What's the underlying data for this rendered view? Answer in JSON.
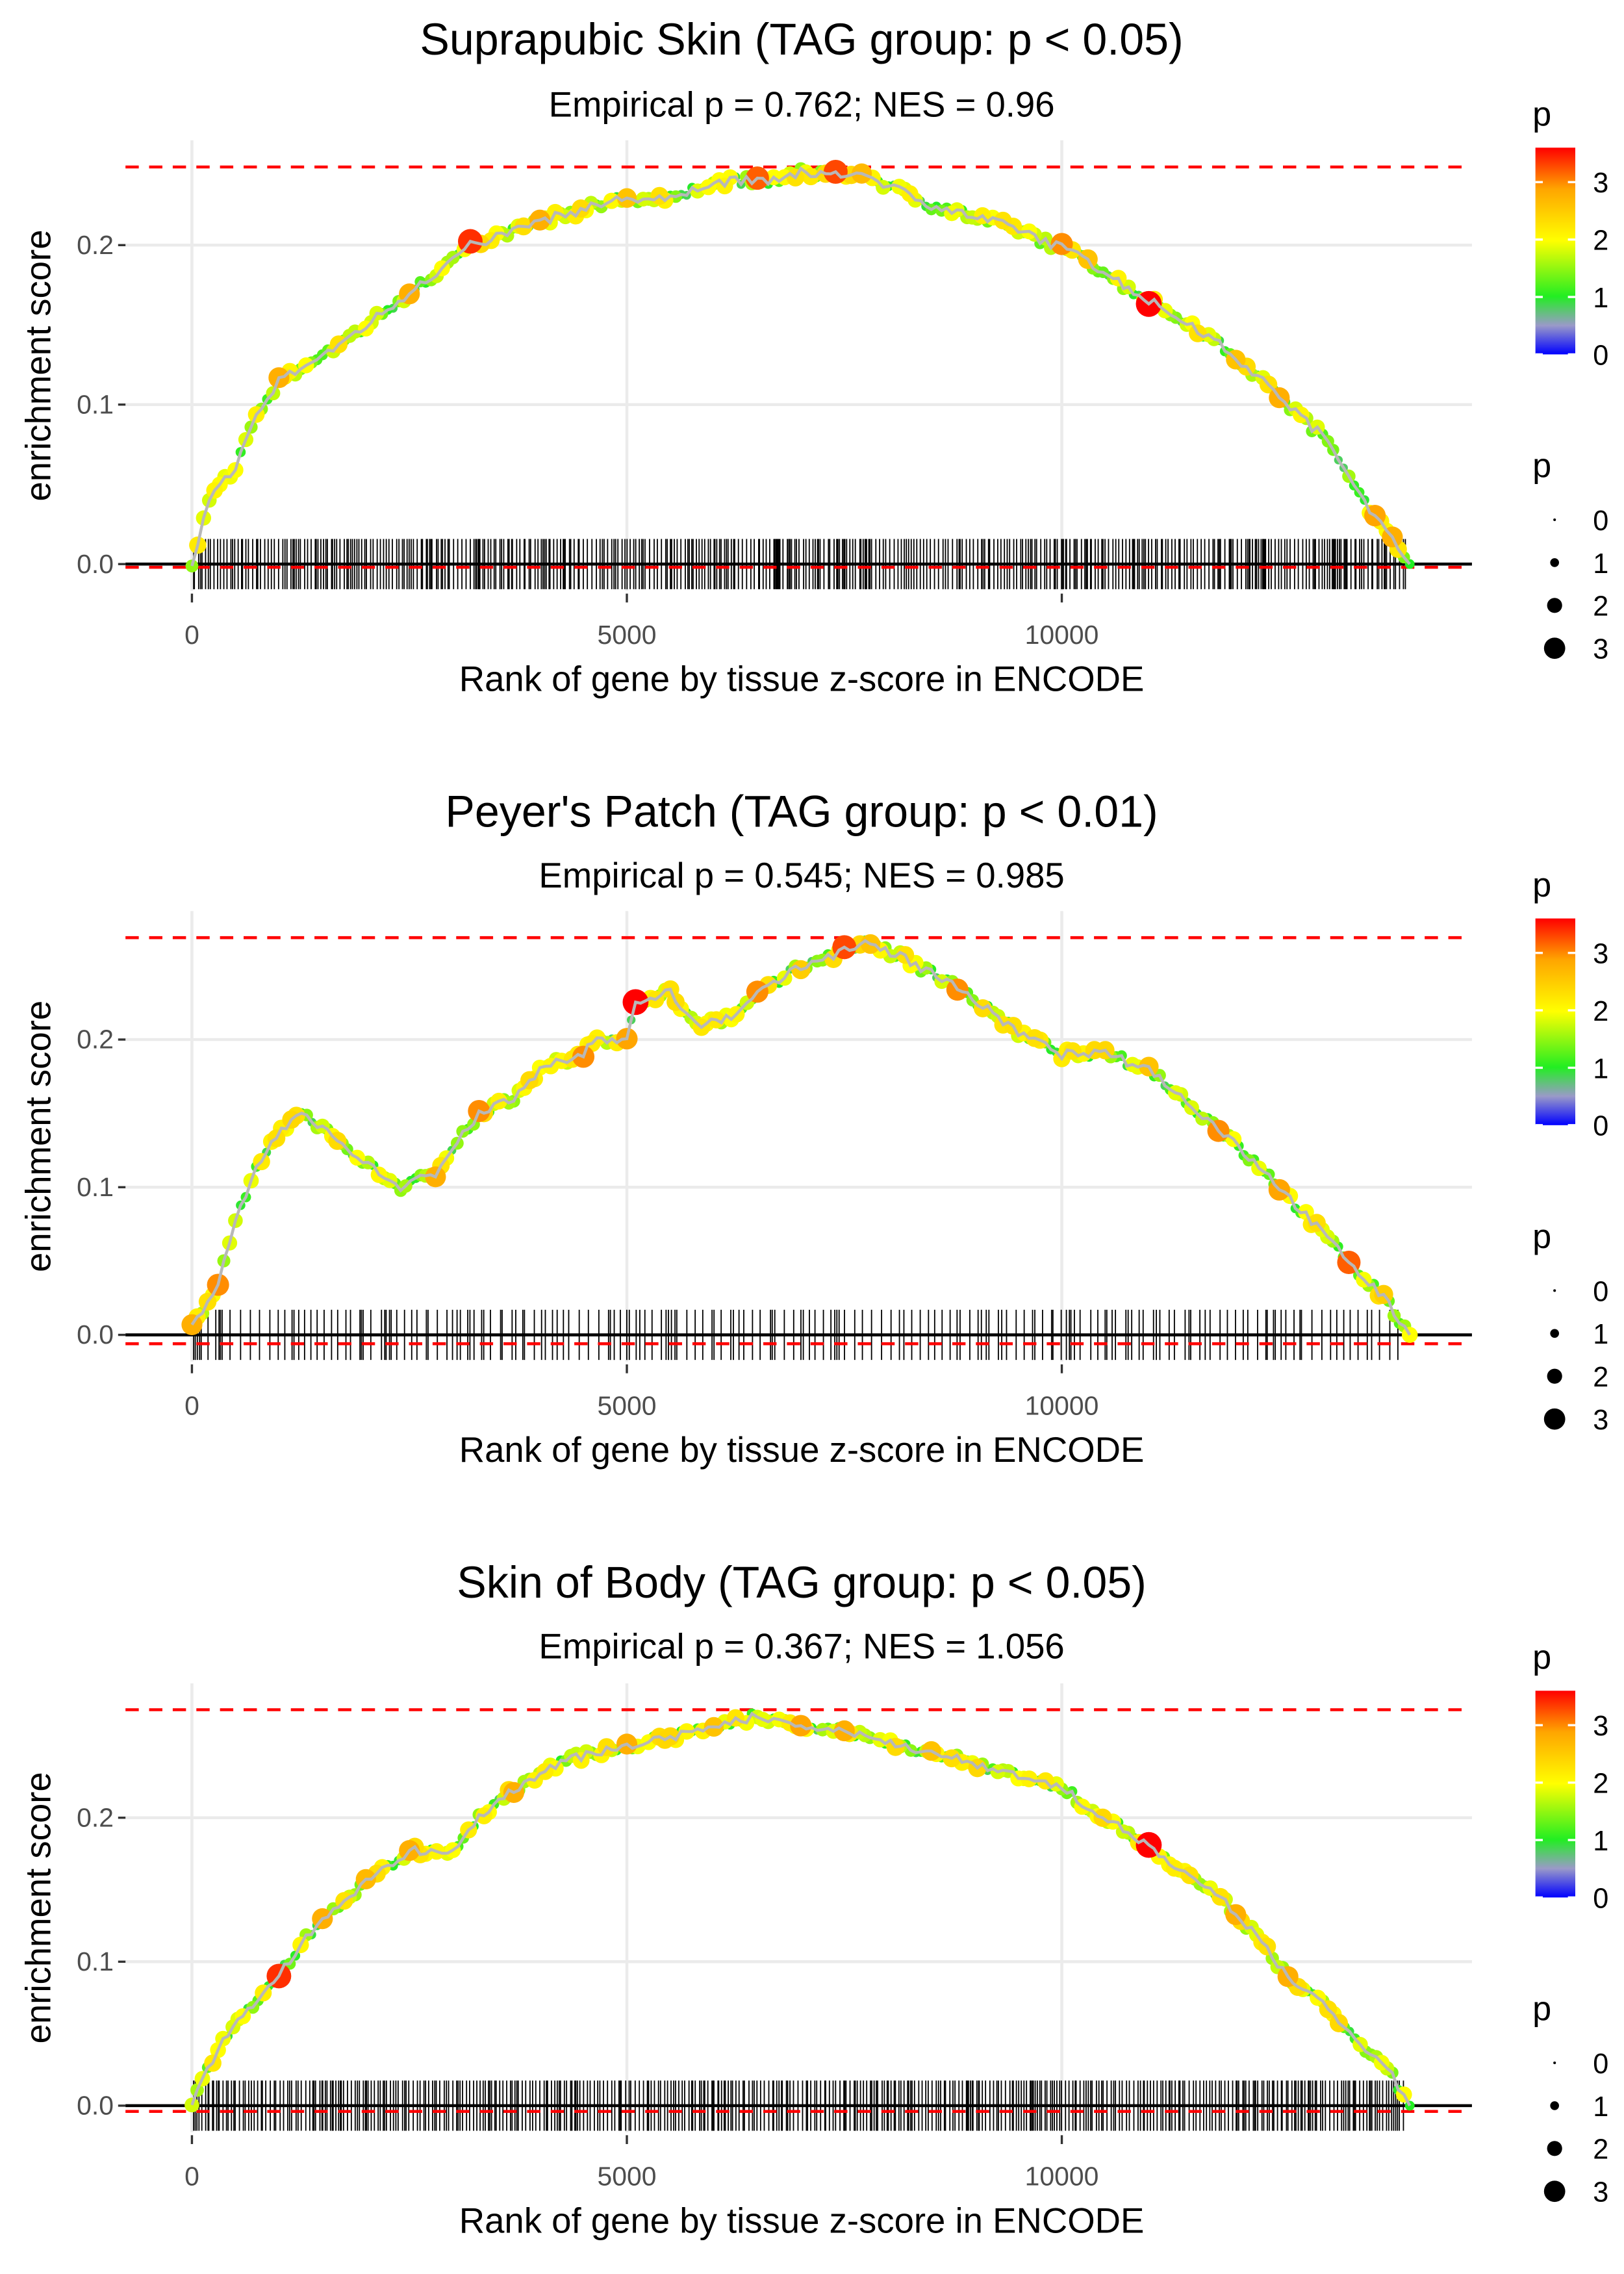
{
  "chart_data": [
    {
      "type": "line",
      "title": "Suprapubic Skin (TAG group: p < 0.05)",
      "subtitle": "Empirical p = 0.762; NES = 0.96",
      "xlabel": "Rank of gene by tissue z-score in ENCODE",
      "ylabel": "enrichment score",
      "xlim": [
        -750,
        14700
      ],
      "ylim": [
        -0.02,
        0.27
      ],
      "xticks": [
        "0",
        "5000",
        "10000"
      ],
      "xtick_values": [
        0,
        5000,
        10000
      ],
      "yticks": [
        "0.0",
        "0.1",
        "0.2"
      ],
      "ytick_values": [
        0,
        0.1,
        0.2
      ],
      "hlines": [
        0.249,
        -0.002
      ],
      "points": [
        [
          0,
          0,
          1.5
        ],
        [
          200,
          0.04,
          1.8
        ],
        [
          500,
          0.06,
          2
        ],
        [
          800,
          0.1,
          1.5
        ],
        [
          1000,
          0.115,
          2.8
        ],
        [
          1500,
          0.13,
          1.2
        ],
        [
          2000,
          0.15,
          2
        ],
        [
          2500,
          0.17,
          2.8
        ],
        [
          3000,
          0.19,
          1.6
        ],
        [
          3200,
          0.2,
          3.4
        ],
        [
          3500,
          0.205,
          2
        ],
        [
          4000,
          0.215,
          2.8
        ],
        [
          5000,
          0.23,
          2.6
        ],
        [
          5500,
          0.228,
          1.1
        ],
        [
          6000,
          0.24,
          1.7
        ],
        [
          6500,
          0.24,
          3.2
        ],
        [
          7000,
          0.245,
          1.5
        ],
        [
          7400,
          0.245,
          3.3
        ],
        [
          7700,
          0.245,
          2.7
        ],
        [
          8500,
          0.225,
          1.3
        ],
        [
          9500,
          0.21,
          1.8
        ],
        [
          10000,
          0.198,
          3
        ],
        [
          10300,
          0.19,
          2.6
        ],
        [
          11000,
          0.165,
          3.6
        ],
        [
          11500,
          0.15,
          2
        ],
        [
          12000,
          0.13,
          2.6
        ],
        [
          12500,
          0.105,
          2.8
        ],
        [
          13000,
          0.08,
          1.2
        ],
        [
          13600,
          0.03,
          2.9
        ],
        [
          13800,
          0.015,
          2.8
        ],
        [
          14000,
          0,
          1
        ]
      ]
    },
    {
      "type": "line",
      "title": "Peyer's Patch (TAG group: p < 0.01)",
      "subtitle": "Empirical p = 0.545; NES = 0.985",
      "xlabel": "Rank of gene by tissue z-score in ENCODE",
      "ylabel": "enrichment score",
      "xlim": [
        -750,
        14700
      ],
      "ylim": [
        -0.02,
        0.29
      ],
      "xticks": [
        "0",
        "5000",
        "10000"
      ],
      "xtick_values": [
        0,
        5000,
        10000
      ],
      "yticks": [
        "0.0",
        "0.1",
        "0.2"
      ],
      "ytick_values": [
        0,
        0.1,
        0.2
      ],
      "hlines": [
        0.269,
        -0.006
      ],
      "points": [
        [
          0,
          0.005,
          2.8
        ],
        [
          300,
          0.035,
          3
        ],
        [
          500,
          0.08,
          1.8
        ],
        [
          800,
          0.12,
          2.2
        ],
        [
          1200,
          0.15,
          2.3
        ],
        [
          1500,
          0.14,
          1.8
        ],
        [
          1900,
          0.12,
          2
        ],
        [
          2400,
          0.1,
          1.5
        ],
        [
          2800,
          0.11,
          2.8
        ],
        [
          3300,
          0.15,
          3
        ],
        [
          3700,
          0.16,
          1.5
        ],
        [
          4000,
          0.18,
          2
        ],
        [
          4500,
          0.19,
          3
        ],
        [
          4600,
          0.2,
          2.2
        ],
        [
          5000,
          0.2,
          2.9
        ],
        [
          5100,
          0.225,
          3.6
        ],
        [
          5500,
          0.232,
          2.3
        ],
        [
          5800,
          0.21,
          1.8
        ],
        [
          6200,
          0.215,
          2
        ],
        [
          6500,
          0.23,
          3
        ],
        [
          7000,
          0.25,
          2.5
        ],
        [
          7500,
          0.26,
          3.3
        ],
        [
          7800,
          0.265,
          2.6
        ],
        [
          8200,
          0.255,
          2.3
        ],
        [
          8800,
          0.235,
          3
        ],
        [
          9500,
          0.205,
          1.8
        ],
        [
          10000,
          0.19,
          2.2
        ],
        [
          10500,
          0.19,
          2.4
        ],
        [
          11000,
          0.18,
          2.6
        ],
        [
          11800,
          0.14,
          3
        ],
        [
          12500,
          0.1,
          2.9
        ],
        [
          13300,
          0.05,
          3.2
        ],
        [
          13700,
          0.025,
          2.5
        ],
        [
          14000,
          0,
          2
        ]
      ]
    },
    {
      "type": "line",
      "title": "Skin of Body (TAG group: p < 0.05)",
      "subtitle": "Empirical p = 0.367; NES = 1.056",
      "xlabel": "Rank of gene by tissue z-score in ENCODE",
      "ylabel": "enrichment score",
      "xlim": [
        -750,
        14700
      ],
      "ylim": [
        -0.02,
        0.29
      ],
      "xticks": [
        "0",
        "5000",
        "10000"
      ],
      "xtick_values": [
        0,
        5000,
        10000
      ],
      "yticks": [
        "0.0",
        "0.1",
        "0.2"
      ],
      "ytick_values": [
        0,
        0.1,
        0.2
      ],
      "hlines": [
        0.275,
        -0.004
      ],
      "points": [
        [
          0,
          0,
          1.8
        ],
        [
          300,
          0.04,
          2
        ],
        [
          700,
          0.07,
          1.5
        ],
        [
          1000,
          0.092,
          3.4
        ],
        [
          1500,
          0.13,
          2.8
        ],
        [
          2000,
          0.155,
          2.7
        ],
        [
          2500,
          0.177,
          2.8
        ],
        [
          3000,
          0.178,
          2
        ],
        [
          3300,
          0.2,
          1.5
        ],
        [
          3700,
          0.22,
          2.8
        ],
        [
          4300,
          0.24,
          1.4
        ],
        [
          5000,
          0.25,
          2.8
        ],
        [
          5500,
          0.255,
          2.4
        ],
        [
          6000,
          0.265,
          2.6
        ],
        [
          6500,
          0.27,
          1.8
        ],
        [
          7000,
          0.265,
          2.9
        ],
        [
          7500,
          0.26,
          2.8
        ],
        [
          8500,
          0.245,
          2.6
        ],
        [
          9500,
          0.23,
          2
        ],
        [
          10000,
          0.22,
          1.5
        ],
        [
          11000,
          0.18,
          3.6
        ],
        [
          12000,
          0.135,
          2.8
        ],
        [
          12600,
          0.09,
          2.8
        ],
        [
          13000,
          0.07,
          1.6
        ],
        [
          13800,
          0.02,
          1.4
        ],
        [
          14000,
          0,
          1
        ]
      ]
    }
  ],
  "legend": {
    "color_title": "p",
    "color_ticks": [
      "0",
      "1",
      "2",
      "3"
    ],
    "size_title": "p",
    "size_labels": [
      "0",
      "1",
      "2",
      "3"
    ]
  }
}
